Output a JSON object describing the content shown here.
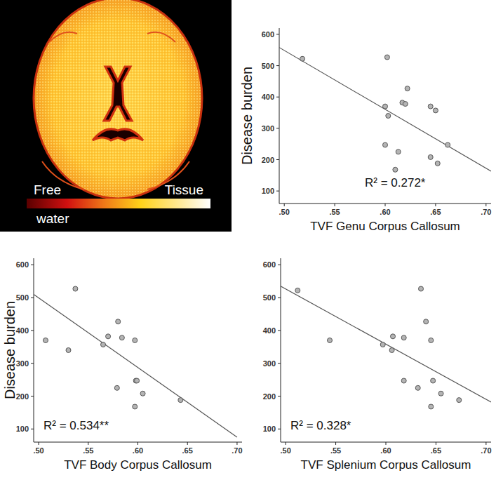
{
  "brain_map": {
    "colorbar_labels": [
      "Free water",
      "Tissue"
    ]
  },
  "chart_data": [
    {
      "type": "scatter",
      "x_label": "TVF Genu Corpus Callosum",
      "y_label": "Disease burden",
      "annotation": "R² = 0.272*",
      "color": "#b4b4b4",
      "marker": "circle",
      "grid": false,
      "x": [
        0.518,
        0.602,
        0.6,
        0.603,
        0.6,
        0.61,
        0.613,
        0.617,
        0.62,
        0.622,
        0.645,
        0.645,
        0.65,
        0.652,
        0.662
      ],
      "values": [
        522,
        527,
        370,
        340,
        247,
        168,
        225,
        382,
        378,
        427,
        370,
        208,
        357,
        188,
        247
      ],
      "trend_line": {
        "x": [
          0.495,
          0.705
        ],
        "y": [
          558,
          163
        ]
      },
      "xlim": [
        0.495,
        0.705
      ],
      "ylim": [
        60,
        620
      ],
      "xticks": [
        {
          "value": 0.5,
          "label": ".50"
        },
        {
          "value": 0.55,
          "label": ".55"
        },
        {
          "value": 0.6,
          "label": ".60"
        },
        {
          "value": 0.65,
          "label": ".65"
        },
        {
          "value": 0.7,
          "label": ".70"
        }
      ],
      "yticks": [
        100,
        200,
        300,
        400,
        500,
        600
      ]
    },
    {
      "type": "scatter",
      "x_label": "TVF Body Corpus Callosum",
      "y_label": "Disease burden",
      "annotation": "R² = 0.534**",
      "color": "#b4b4b4",
      "marker": "circle",
      "grid": false,
      "x": [
        0.507,
        0.53,
        0.537,
        0.565,
        0.57,
        0.58,
        0.584,
        0.597,
        0.579,
        0.598,
        0.599,
        0.597,
        0.605,
        0.643
      ],
      "values": [
        370,
        340,
        527,
        357,
        382,
        427,
        378,
        370,
        225,
        247,
        247,
        168,
        208,
        188
      ],
      "trend_line": {
        "x": [
          0.495,
          0.7
        ],
        "y": [
          510,
          75
        ]
      },
      "xlim": [
        0.495,
        0.705
      ],
      "ylim": [
        60,
        620
      ],
      "xticks": [
        {
          "value": 0.5,
          "label": ".50"
        },
        {
          "value": 0.55,
          "label": ".55"
        },
        {
          "value": 0.6,
          "label": ".60"
        },
        {
          "value": 0.65,
          "label": ".65"
        },
        {
          "value": 0.7,
          "label": ".70"
        }
      ],
      "yticks": [
        100,
        200,
        300,
        400,
        500,
        600
      ]
    },
    {
      "type": "scatter",
      "x_label": "TVF Splenium Corpus Callosum",
      "annotation": "R² = 0.328*",
      "color": "#b4b4b4",
      "marker": "circle",
      "grid": false,
      "x": [
        0.512,
        0.544,
        0.597,
        0.606,
        0.607,
        0.618,
        0.618,
        0.632,
        0.635,
        0.64,
        0.645,
        0.647,
        0.645,
        0.655,
        0.673
      ],
      "values": [
        522,
        370,
        357,
        340,
        382,
        378,
        247,
        225,
        527,
        427,
        370,
        247,
        168,
        208,
        188
      ],
      "trend_line": {
        "x": [
          0.495,
          0.705
        ],
        "y": [
          535,
          182
        ]
      },
      "xlim": [
        0.495,
        0.705
      ],
      "ylim": [
        60,
        620
      ],
      "xticks": [
        {
          "value": 0.5,
          "label": ".50"
        },
        {
          "value": 0.55,
          "label": ".55"
        },
        {
          "value": 0.6,
          "label": ".60"
        },
        {
          "value": 0.65,
          "label": ".65"
        },
        {
          "value": 0.7,
          "label": ".70"
        }
      ],
      "yticks": [
        100,
        200,
        300,
        400,
        500,
        600
      ]
    }
  ]
}
